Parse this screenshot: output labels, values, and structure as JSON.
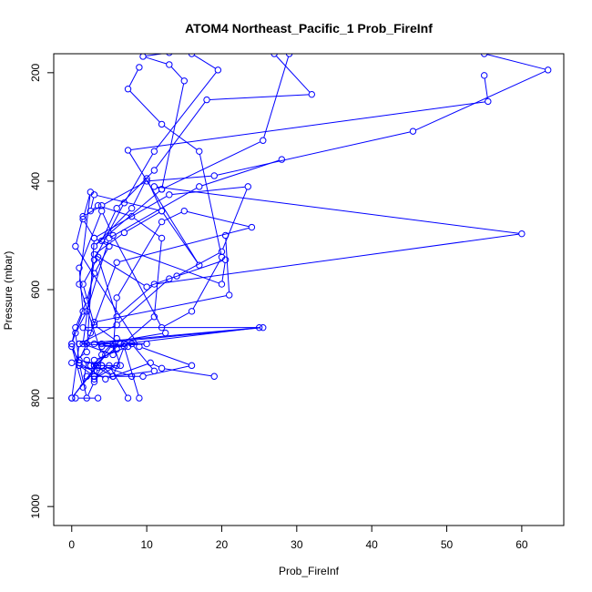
{
  "chart_data": {
    "type": "scatter",
    "title": "ATOM4 Northeast_Pacific_1 Prob_FireInf",
    "xlabel": "Prob_FireInf",
    "ylabel": "Pressure (mbar)",
    "xlim": [
      -2.4,
      65.6
    ],
    "ylim": [
      1035,
      165
    ],
    "y_reversed": true,
    "x_ticks": [
      0,
      10,
      20,
      30,
      40,
      50,
      60
    ],
    "y_ticks": [
      200,
      400,
      600,
      800,
      1000
    ],
    "grid": false,
    "legend": "none",
    "colors": {
      "series": "#0000ff",
      "axes": "#000000",
      "background": "#ffffff"
    },
    "marker": "open-circle",
    "series": [
      {
        "x": [
          9,
          7.5,
          12,
          17,
          20,
          16,
          12,
          5.5,
          4,
          1,
          1.5,
          0,
          0.5,
          2,
          3,
          5,
          3,
          1.5,
          2.5,
          1,
          4,
          6,
          8,
          11,
          5.5,
          3,
          2,
          1.5,
          0,
          1,
          2,
          3,
          4,
          5.5,
          7,
          9
        ],
        "y": [
          190,
          230,
          295,
          345,
          540,
          640,
          670,
          500,
          455,
          560,
          640,
          700,
          670,
          620,
          570,
          520,
          505,
          470,
          420,
          590,
          720,
          690,
          700,
          750,
          760,
          740,
          730,
          780,
          705,
          735,
          800,
          770,
          740,
          760,
          705,
          800
        ]
      },
      {
        "x": [
          13,
          9.5,
          13,
          15,
          12,
          3,
          8,
          10,
          12,
          7,
          3,
          10,
          14,
          20,
          23.5,
          13,
          3,
          2,
          0,
          3,
          6,
          3,
          5,
          7.5
        ],
        "y": [
          163,
          170,
          185,
          215,
          415,
          520,
          450,
          395,
          455,
          495,
          535,
          595,
          575,
          530,
          410,
          425,
          505,
          715,
          735,
          750,
          740,
          765,
          740,
          800
        ]
      },
      {
        "x": [
          16,
          19.5,
          11,
          7,
          3,
          1.5,
          5.5,
          6,
          12,
          15,
          24,
          6,
          2,
          1,
          4,
          8
        ],
        "y": [
          165,
          195,
          345,
          440,
          545,
          700,
          720,
          615,
          475,
          455,
          485,
          550,
          700,
          730,
          740,
          760
        ]
      },
      {
        "x": [
          27,
          32,
          18,
          11,
          6,
          4,
          20,
          20.5,
          13,
          6,
          1,
          25,
          4,
          10,
          7
        ],
        "y": [
          165,
          240,
          250,
          380,
          450,
          510,
          590,
          545,
          580,
          665,
          700,
          670,
          705,
          700,
          700
        ]
      },
      {
        "x": [
          55,
          63.5,
          45.5,
          19,
          10,
          4,
          1.5,
          0.5,
          9,
          16,
          9.5,
          2,
          3
        ],
        "y": [
          165,
          195,
          308,
          390,
          400,
          445,
          465,
          520,
          705,
          740,
          760,
          760,
          760
        ]
      },
      {
        "x": [
          55,
          55.5,
          7.5,
          17,
          12,
          3,
          2.5,
          3.5,
          8,
          12,
          11,
          6,
          4,
          12.5
        ],
        "y": [
          205,
          253,
          343,
          555,
          455,
          425,
          455,
          445,
          465,
          505,
          650,
          710,
          700,
          680
        ]
      },
      {
        "x": [
          29,
          25.5,
          12,
          11,
          60,
          11,
          6,
          3.5,
          1.5,
          3,
          6.5,
          8
        ],
        "y": [
          165,
          325,
          415,
          410,
          497,
          590,
          650,
          540,
          590,
          665,
          700,
          700
        ]
      },
      {
        "x": [
          28,
          17,
          5,
          2,
          0.5,
          1,
          4.5,
          10.5,
          12,
          19
        ],
        "y": [
          360,
          410,
          505,
          640,
          680,
          735,
          765,
          735,
          745,
          760
        ]
      },
      {
        "x": [
          20.5,
          21,
          3,
          2.5,
          1.5,
          25.5,
          3,
          6.5,
          3,
          2.5
        ],
        "y": [
          500,
          610,
          660,
          680,
          670,
          670,
          700,
          700,
          740,
          740
        ]
      },
      {
        "x": [
          0,
          1,
          3,
          3,
          7.5,
          1,
          0,
          3.5,
          4.5,
          2.5,
          6.5,
          5.5,
          0,
          0.5,
          3.5
        ],
        "y": [
          700,
          740,
          760,
          730,
          705,
          700,
          800,
          740,
          720,
          740,
          740,
          700,
          800,
          800,
          800
        ]
      }
    ]
  }
}
